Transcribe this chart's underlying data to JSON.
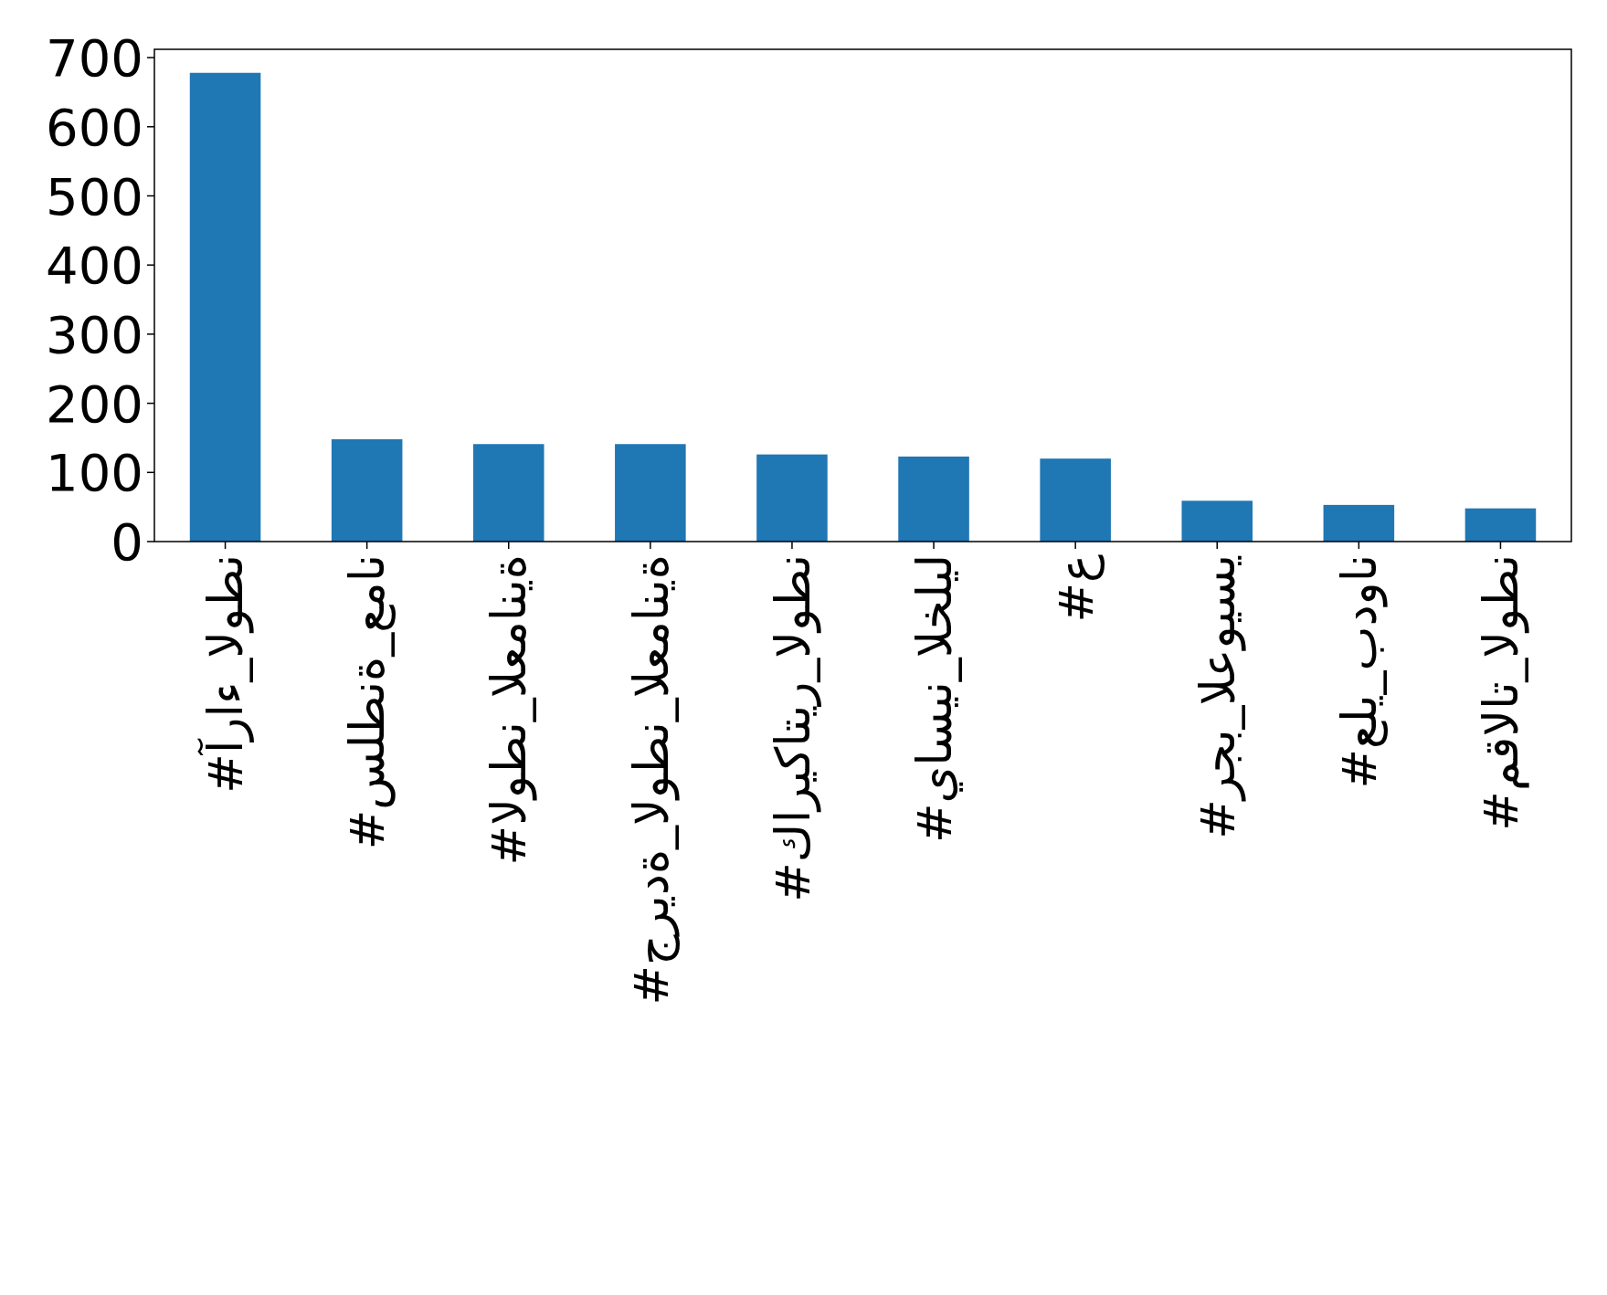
{
  "chart_data": {
    "type": "bar",
    "categories": [
      "#آراء_الوطن",
      "#سلطنة_عمان",
      "#الوطن_العمانية",
      "#جريدة_الوطن_العمانية",
      "#كاريكاتير_الوطن",
      "#ياسين_الخليل",
      "#ع",
      "#رجب_العويسي",
      "#علي_بدوان",
      "#مقالات_الوطن"
    ],
    "values": [
      678,
      148,
      141,
      141,
      126,
      123,
      120,
      59,
      53,
      48
    ],
    "color": "#1f77b4",
    "ylim": [
      0,
      712
    ],
    "yticks": [
      0,
      100,
      200,
      300,
      400,
      500,
      600,
      700
    ],
    "grid": false
  }
}
